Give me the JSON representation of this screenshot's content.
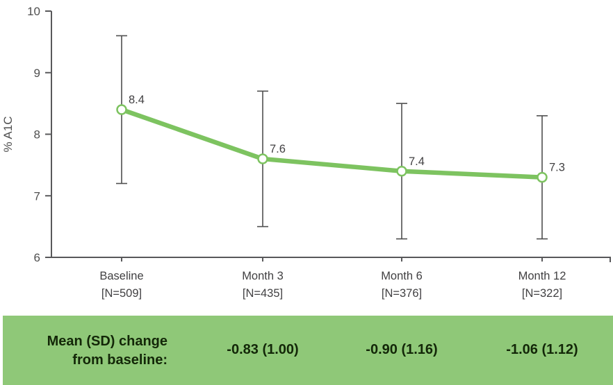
{
  "colors": {
    "line_green": "#7dc360",
    "band_green": "#8fc878",
    "axis_gray": "#58585a",
    "error_gray": "#4f4f4f",
    "tick_text": "#4f4f4f",
    "label_text": "#414042",
    "band_text": "#132708",
    "marker_fill": "#ffffff"
  },
  "chart_data": {
    "type": "line",
    "title": "",
    "xlabel": "",
    "ylabel": "% A1C",
    "ylim": [
      6,
      10
    ],
    "yticks": [
      6,
      7,
      8,
      9,
      10
    ],
    "grid": false,
    "legend": "none",
    "categories": [
      "Baseline",
      "Month 3",
      "Month 6",
      "Month 12"
    ],
    "category_sublabels": [
      "[N=509]",
      "[N=435]",
      "[N=376]",
      "[N=322]"
    ],
    "series": [
      {
        "name": "% A1C",
        "values": [
          8.4,
          7.6,
          7.4,
          7.3
        ],
        "point_labels": [
          "8.4",
          "7.6",
          "7.4",
          "7.3"
        ],
        "error_low": [
          7.2,
          6.5,
          6.3,
          6.3
        ],
        "error_high": [
          9.6,
          8.7,
          8.5,
          8.3
        ]
      }
    ]
  },
  "summary_band": {
    "label_line1": "Mean (SD) change",
    "label_line2": "from baseline:",
    "values": [
      "-0.83 (1.00)",
      "-0.90 (1.16)",
      "-1.06 (1.12)"
    ]
  }
}
